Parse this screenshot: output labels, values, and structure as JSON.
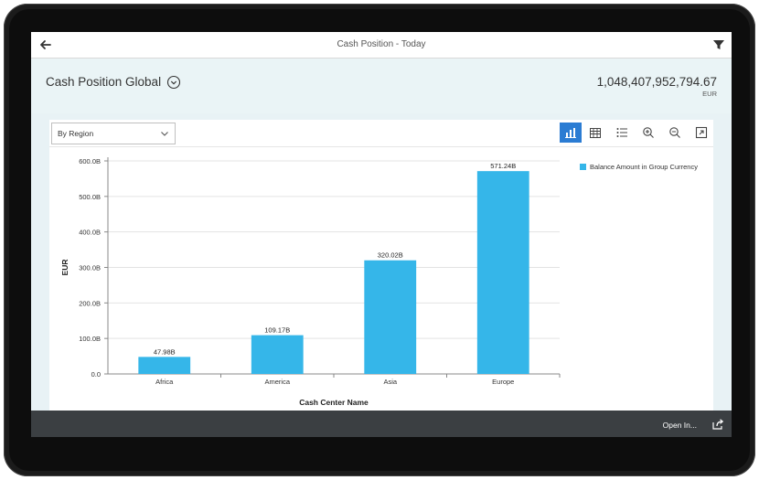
{
  "shell": {
    "title": "Cash Position - Today"
  },
  "header": {
    "title": "Cash Position Global",
    "kpi_value": "1,048,407,952,794.67",
    "kpi_unit": "EUR"
  },
  "toolbar": {
    "select_value": "By Region",
    "icons": [
      "bar-chart-icon",
      "table-icon",
      "legend-icon",
      "zoom-in-icon",
      "zoom-out-icon",
      "fullscreen-icon"
    ]
  },
  "legend": {
    "label": "Balance Amount in Group Currency"
  },
  "footer": {
    "open_in": "Open In..."
  },
  "colors": {
    "accent": "#2b7cd3",
    "bar": "#35b6e9",
    "footer": "#3b3f42",
    "header_bg": "#eaf4f6"
  },
  "chart_data": {
    "type": "bar",
    "categories": [
      "Africa",
      "America",
      "Asia",
      "Europe"
    ],
    "series": [
      {
        "name": "Balance Amount in Group Currency",
        "values": [
          47.98,
          109.17,
          320.02,
          571.24
        ]
      }
    ],
    "data_labels": [
      "47.98B",
      "109.17B",
      "320.02B",
      "571.24B"
    ],
    "y_ticks": [
      "0.0",
      "100.0B",
      "200.0B",
      "300.0B",
      "400.0B",
      "500.0B",
      "600.0B"
    ],
    "xlabel": "Cash Center Name",
    "ylabel": "EUR",
    "ylim": [
      0,
      600
    ],
    "grid": true,
    "legend": "top-right"
  }
}
